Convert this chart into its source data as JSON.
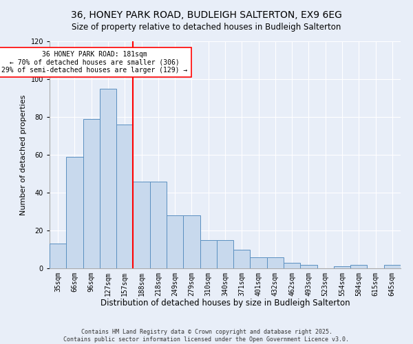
{
  "title": "36, HONEY PARK ROAD, BUDLEIGH SALTERTON, EX9 6EG",
  "subtitle": "Size of property relative to detached houses in Budleigh Salterton",
  "xlabel": "Distribution of detached houses by size in Budleigh Salterton",
  "ylabel": "Number of detached properties",
  "categories": [
    "35sqm",
    "66sqm",
    "96sqm",
    "127sqm",
    "157sqm",
    "188sqm",
    "218sqm",
    "249sqm",
    "279sqm",
    "310sqm",
    "340sqm",
    "371sqm",
    "401sqm",
    "432sqm",
    "462sqm",
    "493sqm",
    "523sqm",
    "554sqm",
    "584sqm",
    "615sqm",
    "645sqm"
  ],
  "values": [
    13,
    59,
    79,
    95,
    76,
    46,
    46,
    28,
    28,
    15,
    15,
    10,
    6,
    6,
    3,
    2,
    0,
    1,
    2,
    0,
    2
  ],
  "bar_color": "#c8d9ed",
  "bar_edge_color": "#5a8fc0",
  "vline_color": "red",
  "annotation_text": "36 HONEY PARK ROAD: 181sqm\n← 70% of detached houses are smaller (306)\n29% of semi-detached houses are larger (129) →",
  "annotation_box_color": "white",
  "annotation_box_edge": "red",
  "ylim": [
    0,
    120
  ],
  "yticks": [
    0,
    20,
    40,
    60,
    80,
    100,
    120
  ],
  "background_color": "#e8eef8",
  "footer": "Contains HM Land Registry data © Crown copyright and database right 2025.\nContains public sector information licensed under the Open Government Licence v3.0.",
  "title_fontsize": 10,
  "xlabel_fontsize": 8.5,
  "ylabel_fontsize": 8,
  "tick_fontsize": 7,
  "footer_fontsize": 6,
  "ann_fontsize": 7
}
